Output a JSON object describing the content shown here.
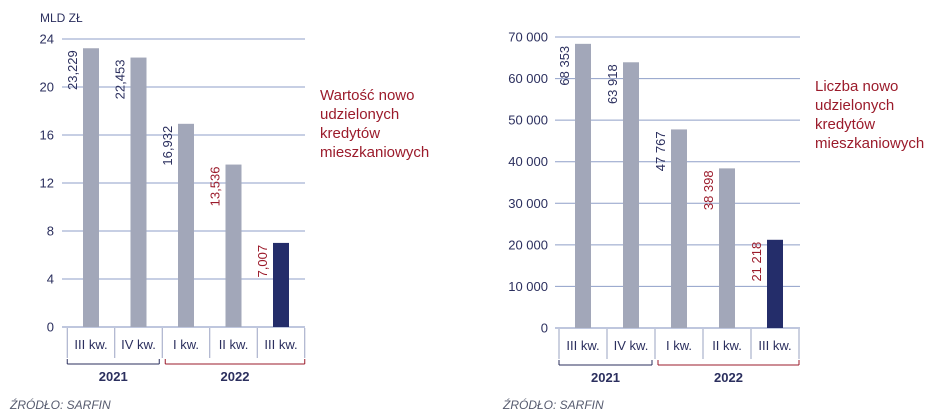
{
  "colors": {
    "bar_grey": "#a2a7b9",
    "bar_navy": "#242d6a",
    "grid": "#8f9fc8",
    "label_navy": "#2b2f5e",
    "label_red": "#9b1b2b",
    "year_2021_line": "#2b2f5e",
    "year_2022_line": "#9b1b2b"
  },
  "chart_data": [
    {
      "type": "bar",
      "unit_label": "MLD ZŁ",
      "categories": [
        "III kw.",
        "IV kw.",
        "I kw.",
        "II kw.",
        "III kw."
      ],
      "years": [
        {
          "label": "2021",
          "span": [
            0,
            1
          ],
          "color": "#2b2f5e"
        },
        {
          "label": "2022",
          "span": [
            2,
            4
          ],
          "color": "#9b1b2b"
        }
      ],
      "values": [
        23.229,
        22.453,
        16.932,
        13.536,
        7.007
      ],
      "data_labels": [
        "23,229",
        "22,453",
        "16,932",
        "13,536",
        "7,007"
      ],
      "label_colors": [
        "#2b2f5e",
        "#2b2f5e",
        "#2b2f5e",
        "#9b1b2b",
        "#9b1b2b"
      ],
      "bar_colors": [
        "#a2a7b9",
        "#a2a7b9",
        "#a2a7b9",
        "#a2a7b9",
        "#242d6a"
      ],
      "ylim": [
        0,
        24
      ],
      "yticks": [
        0,
        4,
        8,
        12,
        16,
        20,
        24
      ],
      "ytick_labels": [
        "0",
        "4",
        "8",
        "12",
        "16",
        "20",
        "24"
      ],
      "grid": true,
      "side_label": [
        "Wartość nowo",
        "udzielonych",
        "kredytów",
        "mieszkaniowych"
      ],
      "source": "ŹRÓDŁO: SARFIN"
    },
    {
      "type": "bar",
      "unit_label": "",
      "categories": [
        "III kw.",
        "IV kw.",
        "I kw.",
        "II kw.",
        "III kw."
      ],
      "years": [
        {
          "label": "2021",
          "span": [
            0,
            1
          ],
          "color": "#2b2f5e"
        },
        {
          "label": "2022",
          "span": [
            2,
            4
          ],
          "color": "#9b1b2b"
        }
      ],
      "values": [
        68353,
        63918,
        47767,
        38398,
        21218
      ],
      "data_labels": [
        "68 353",
        "63 918",
        "47 767",
        "38 398",
        "21 218"
      ],
      "label_colors": [
        "#2b2f5e",
        "#2b2f5e",
        "#2b2f5e",
        "#9b1b2b",
        "#9b1b2b"
      ],
      "bar_colors": [
        "#a2a7b9",
        "#a2a7b9",
        "#a2a7b9",
        "#a2a7b9",
        "#242d6a"
      ],
      "ylim": [
        0,
        70000
      ],
      "yticks": [
        0,
        10000,
        20000,
        30000,
        40000,
        50000,
        60000,
        70000
      ],
      "ytick_labels": [
        "0",
        "10 000",
        "20 000",
        "30 000",
        "40 000",
        "50 000",
        "60 000",
        "70 000"
      ],
      "grid": true,
      "side_label": [
        "Liczba nowo",
        "udzielonych",
        "kredytów",
        "mieszkaniowych"
      ],
      "source": "ŹRÓDŁO: SARFIN"
    }
  ]
}
